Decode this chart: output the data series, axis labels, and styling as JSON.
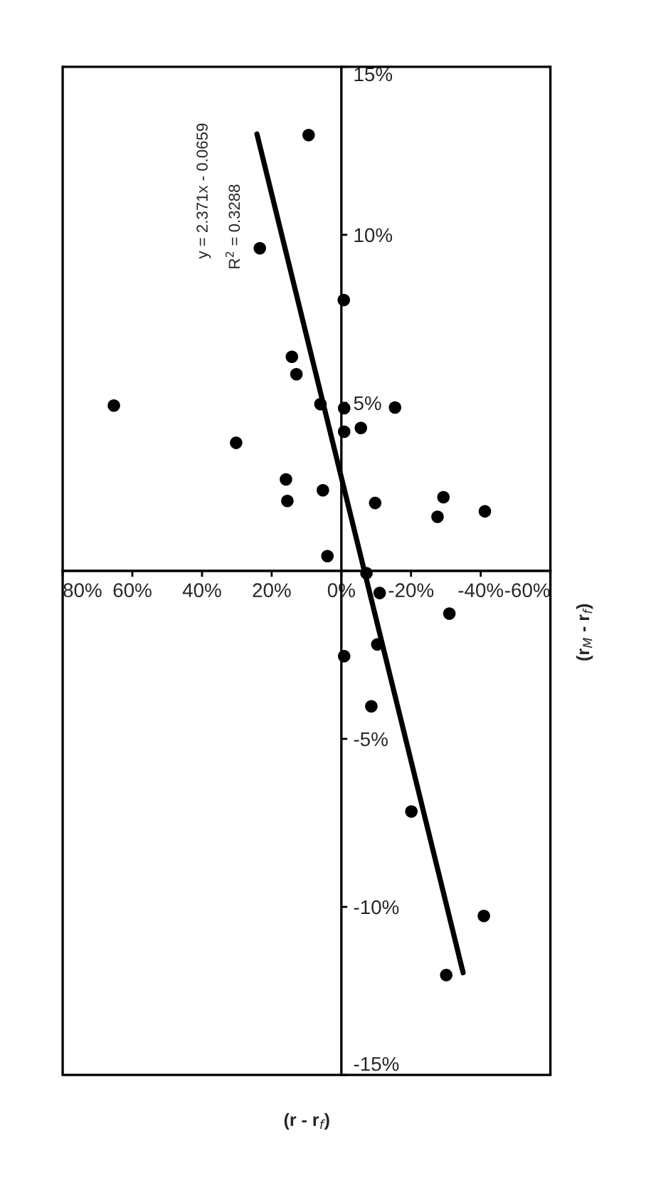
{
  "chart_data": {
    "type": "scatter",
    "xlabel": "(r - r$_{f}$)",
    "ylabel": "(r$_{M}$ - r$_{f}$)",
    "annotations": [
      "y = 2.371x - 0.0659",
      "R$^{2}$ = 0.3288"
    ],
    "xlim": [
      80,
      -60
    ],
    "xticks": [
      {
        "value": 80,
        "label": "80%"
      },
      {
        "value": 60,
        "label": "60%"
      },
      {
        "value": 40,
        "label": "40%"
      },
      {
        "value": 20,
        "label": "20%"
      },
      {
        "value": 0,
        "label": "0%"
      },
      {
        "value": -20,
        "label": "-20%"
      },
      {
        "value": -40,
        "label": "-40%"
      },
      {
        "value": -60,
        "label": "-60%"
      }
    ],
    "ylim": [
      -15,
      15
    ],
    "yticks": [
      {
        "value": -15,
        "label": "-15%"
      },
      {
        "value": -10,
        "label": "-10%"
      },
      {
        "value": -5,
        "label": "-5%"
      },
      {
        "value": 0,
        "label": null
      },
      {
        "value": 5,
        "label": "5%"
      },
      {
        "value": 10,
        "label": "10%"
      },
      {
        "value": 15,
        "label": "15%"
      }
    ],
    "grid": false,
    "marker": "circle",
    "series": [
      {
        "color": "#000000",
        "x": [
          9.4,
          23.4,
          -0.7,
          14.2,
          12.9,
          65.3,
          6.0,
          -0.8,
          -15.4,
          -5.6,
          -0.8,
          30.2,
          15.9,
          15.5,
          5.3,
          -9.7,
          -29.3,
          -27.6,
          -41.2,
          4.0,
          -7.2,
          -11.0,
          -31.0,
          -0.8,
          -10.3,
          -8.6,
          -20.1,
          -40.9,
          -30.1
        ],
        "values": [
          12.97,
          9.6,
          8.06,
          6.37,
          5.85,
          4.92,
          4.96,
          4.84,
          4.86,
          4.25,
          4.14,
          3.81,
          2.72,
          2.08,
          2.4,
          2.02,
          2.19,
          1.61,
          1.77,
          0.44,
          -0.07,
          -0.66,
          -1.27,
          -2.54,
          -2.19,
          -4.03,
          -7.16,
          -10.27,
          -12.03
        ]
      },
      {
        "type": "line",
        "marker": "none",
        "color": "#000000",
        "x": [
          24.23,
          -34.95
        ],
        "values": [
          13.0,
          -11.96
        ]
      }
    ]
  }
}
